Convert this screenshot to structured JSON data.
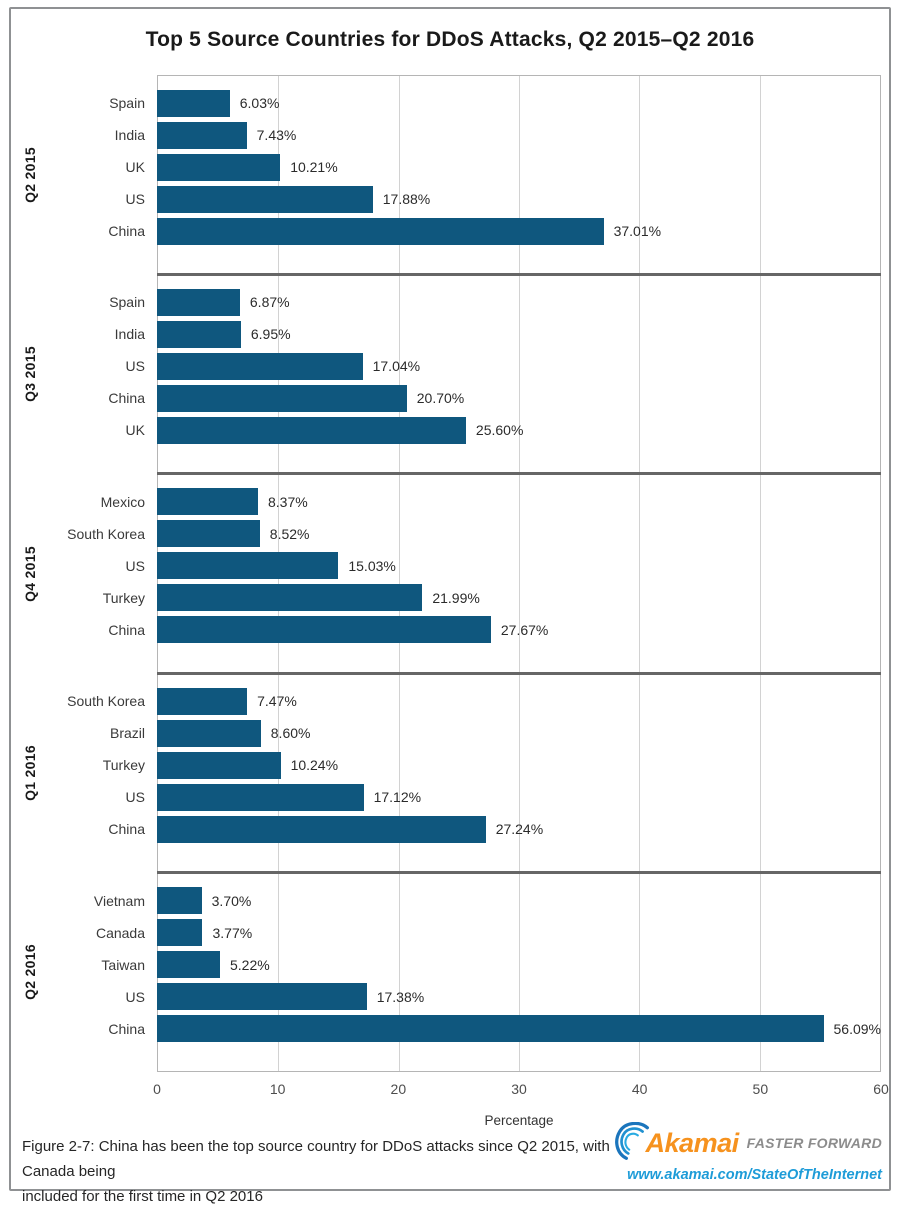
{
  "page": {
    "title": "Top 5 Source Countries for DDoS Attacks, Q2 2015–Q2 2016",
    "caption_line1": "Figure 2-7: China has been the top source country for DDoS attacks since Q2 2015, with Canada being",
    "caption_line2": "included for the first time in Q2 2016",
    "logo": {
      "brand": "Akamai",
      "tagline": "FASTER FORWARD",
      "url": "www.akamai.com/StateOfTheInternet"
    }
  },
  "colors": {
    "bar": "#0f577e",
    "separator": "#666666",
    "gridline": "#d2d2d2",
    "frame": "#b5b5b5",
    "brand_orange": "#f6921e",
    "brand_blue": "#1e9cd8",
    "tagline_gray": "#8c8c8c"
  },
  "chart_data": {
    "type": "bar",
    "orientation": "horizontal",
    "title": "Top 5 Source Countries for DDoS Attacks, Q2 2015–Q2 2016",
    "xlabel": "Percentage",
    "xlim": [
      0,
      60
    ],
    "xticks": [
      0,
      10,
      20,
      30,
      40,
      50,
      60
    ],
    "grid": true,
    "groups": [
      {
        "quarter": "Q2 2015",
        "bars": [
          {
            "label": "Spain",
            "value": 6.03,
            "display": "6.03%"
          },
          {
            "label": "India",
            "value": 7.43,
            "display": "7.43%"
          },
          {
            "label": "UK",
            "value": 10.21,
            "display": "10.21%"
          },
          {
            "label": "US",
            "value": 17.88,
            "display": "17.88%"
          },
          {
            "label": "China",
            "value": 37.01,
            "display": "37.01%"
          }
        ]
      },
      {
        "quarter": "Q3 2015",
        "bars": [
          {
            "label": "Spain",
            "value": 6.87,
            "display": "6.87%"
          },
          {
            "label": "India",
            "value": 6.95,
            "display": "6.95%"
          },
          {
            "label": "US",
            "value": 17.04,
            "display": "17.04%"
          },
          {
            "label": "China",
            "value": 20.7,
            "display": "20.70%"
          },
          {
            "label": "UK",
            "value": 25.6,
            "display": "25.60%"
          }
        ]
      },
      {
        "quarter": "Q4 2015",
        "bars": [
          {
            "label": "Mexico",
            "value": 8.37,
            "display": "8.37%"
          },
          {
            "label": "South Korea",
            "value": 8.52,
            "display": "8.52%"
          },
          {
            "label": "US",
            "value": 15.03,
            "display": "15.03%"
          },
          {
            "label": "Turkey",
            "value": 21.99,
            "display": "21.99%"
          },
          {
            "label": "China",
            "value": 27.67,
            "display": "27.67%"
          }
        ]
      },
      {
        "quarter": "Q1 2016",
        "bars": [
          {
            "label": "South Korea",
            "value": 7.47,
            "display": "7.47%"
          },
          {
            "label": "Brazil",
            "value": 8.6,
            "display": "8.60%"
          },
          {
            "label": "Turkey",
            "value": 10.24,
            "display": "10.24%"
          },
          {
            "label": "US",
            "value": 17.12,
            "display": "17.12%"
          },
          {
            "label": "China",
            "value": 27.24,
            "display": "27.24%"
          }
        ]
      },
      {
        "quarter": "Q2 2016",
        "bars": [
          {
            "label": "Vietnam",
            "value": 3.7,
            "display": "3.70%"
          },
          {
            "label": "Canada",
            "value": 3.77,
            "display": "3.77%"
          },
          {
            "label": "Taiwan",
            "value": 5.22,
            "display": "5.22%"
          },
          {
            "label": "US",
            "value": 17.38,
            "display": "17.38%"
          },
          {
            "label": "China",
            "value": 56.09,
            "display": "56.09%"
          }
        ]
      }
    ]
  }
}
